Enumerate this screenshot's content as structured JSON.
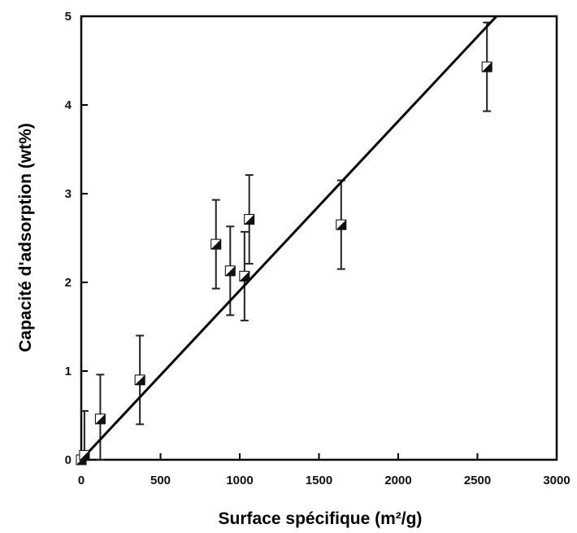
{
  "chart_data": {
    "type": "scatter",
    "xlabel": "Surface spécifique (m²/g)",
    "ylabel": "Capacité d'adsorption (wt%)",
    "xlim": [
      0,
      3000
    ],
    "ylim": [
      0,
      5
    ],
    "xticks": [
      0,
      500,
      1000,
      1500,
      2000,
      2500,
      3000
    ],
    "yticks": [
      0,
      1,
      2,
      3,
      4,
      5
    ],
    "grid": false,
    "points": [
      {
        "x": 0,
        "y": 0.0,
        "err": 0.0
      },
      {
        "x": 20,
        "y": 0.05,
        "err": 0.5
      },
      {
        "x": 120,
        "y": 0.46,
        "err": 0.5
      },
      {
        "x": 370,
        "y": 0.9,
        "err": 0.5
      },
      {
        "x": 850,
        "y": 2.43,
        "err": 0.5
      },
      {
        "x": 940,
        "y": 2.13,
        "err": 0.5
      },
      {
        "x": 1030,
        "y": 2.07,
        "err": 0.5
      },
      {
        "x": 1060,
        "y": 2.71,
        "err": 0.5
      },
      {
        "x": 1640,
        "y": 2.65,
        "err": 0.5
      },
      {
        "x": 2560,
        "y": 4.43,
        "err": 0.5
      }
    ],
    "fit_line": {
      "x": [
        0,
        2620
      ],
      "y": [
        0,
        5.0
      ]
    }
  }
}
